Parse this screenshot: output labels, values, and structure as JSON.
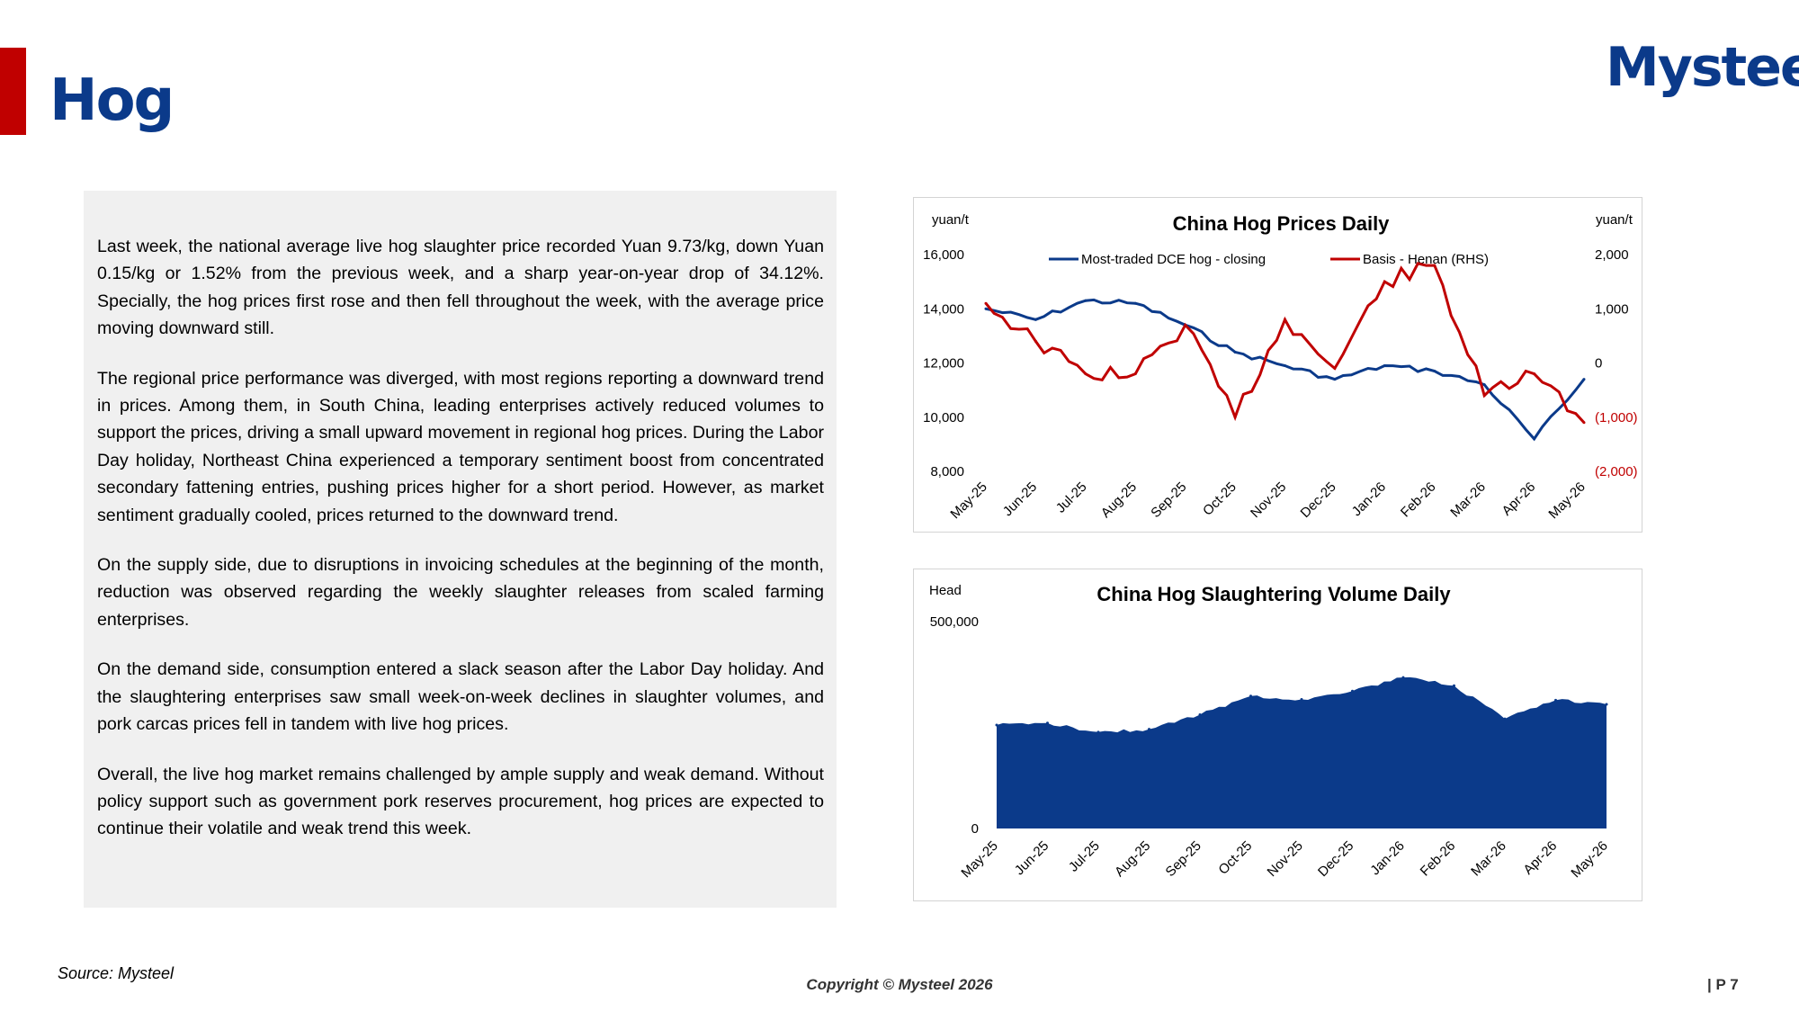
{
  "header": {
    "title": "Hog",
    "logo": "Mysteel"
  },
  "article": {
    "paragraphs": [
      "Last week, the national average live hog slaughter price recorded Yuan 9.73/kg, down Yuan 0.15/kg or 1.52% from the previous week, and a sharp year-on-year drop of 34.12%. Specially, the hog prices first rose and then fell throughout the week, with the average price moving downward still.",
      "The regional price performance was diverged, with most regions reporting a downward trend in prices. Among them, in South China, leading enterprises actively reduced volumes to support the prices, driving a small upward movement in regional hog prices. During the Labor Day holiday, Northeast China experienced a temporary sentiment boost from concentrated secondary fattening entries, pushing prices higher for a short period. However, as market sentiment gradually cooled, prices returned to the downward trend.",
      "On the supply side, due to disruptions in invoicing schedules at the beginning of the month, reduction was observed regarding the weekly slaughter releases from scaled farming enterprises.",
      "On the demand side, consumption entered a slack season after the Labor Day holiday. And the slaughtering enterprises saw small week-on-week declines in slaughter volumes, and pork carcas prices fell in tandem with live hog prices.",
      "Overall, the live hog market remains challenged by ample supply and weak demand. Without policy support such as government pork reserves procurement, hog prices are expected to continue their volatile and weak trend this week."
    ]
  },
  "chart_data": [
    {
      "type": "line",
      "title": "China Hog Prices Daily",
      "ylabel": "yuan/t",
      "y2label": "yuan/t",
      "ylim": [
        8000,
        16000
      ],
      "y2lim": [
        -2000,
        2000
      ],
      "yticks": [
        "16,000",
        "14,000",
        "12,000",
        "10,000",
        "8,000"
      ],
      "y2ticks": [
        "2,000",
        "1,000",
        "0",
        "(1,000)",
        "(2,000)"
      ],
      "categories": [
        "May-25",
        "Jun-25",
        "Jul-25",
        "Aug-25",
        "Sep-25",
        "Oct-25",
        "Nov-25",
        "Dec-25",
        "Jan-26",
        "Feb-26",
        "Mar-26",
        "Apr-26",
        "May-26"
      ],
      "legend_position": "top",
      "series": [
        {
          "name": "Most-traded DCE hog - closing",
          "axis": "left",
          "color": "#0b3a8a",
          "values": [
            14000,
            13600,
            14300,
            14200,
            13400,
            12400,
            11900,
            11400,
            11900,
            11700,
            11200,
            9200,
            11400
          ]
        },
        {
          "name": "Basis - Henan (RHS)",
          "axis": "right",
          "color": "#c00000",
          "values": [
            1100,
            400,
            -200,
            -200,
            700,
            -1000,
            800,
            -100,
            1500,
            1800,
            -600,
            -200,
            -1100
          ]
        }
      ]
    },
    {
      "type": "area",
      "title": "China Hog Slaughtering Volume Daily",
      "ylabel": "Head",
      "ylim": [
        0,
        500000
      ],
      "yticks": [
        "500,000",
        "0"
      ],
      "categories": [
        "May-25",
        "Jun-25",
        "Jul-25",
        "Aug-25",
        "Sep-25",
        "Oct-25",
        "Nov-25",
        "Dec-25",
        "Jan-26",
        "Feb-26",
        "Mar-26",
        "Apr-26",
        "May-26"
      ],
      "color": "#0b3a8a",
      "series": [
        {
          "values": [
            250000,
            255000,
            233000,
            240000,
            275000,
            320000,
            312000,
            332000,
            365000,
            345000,
            265000,
            310000,
            300000
          ]
        }
      ]
    }
  ],
  "footer": {
    "source": "Source: Mysteel",
    "copyright": "Copyright © Mysteel 2026",
    "page": "| P 7"
  }
}
